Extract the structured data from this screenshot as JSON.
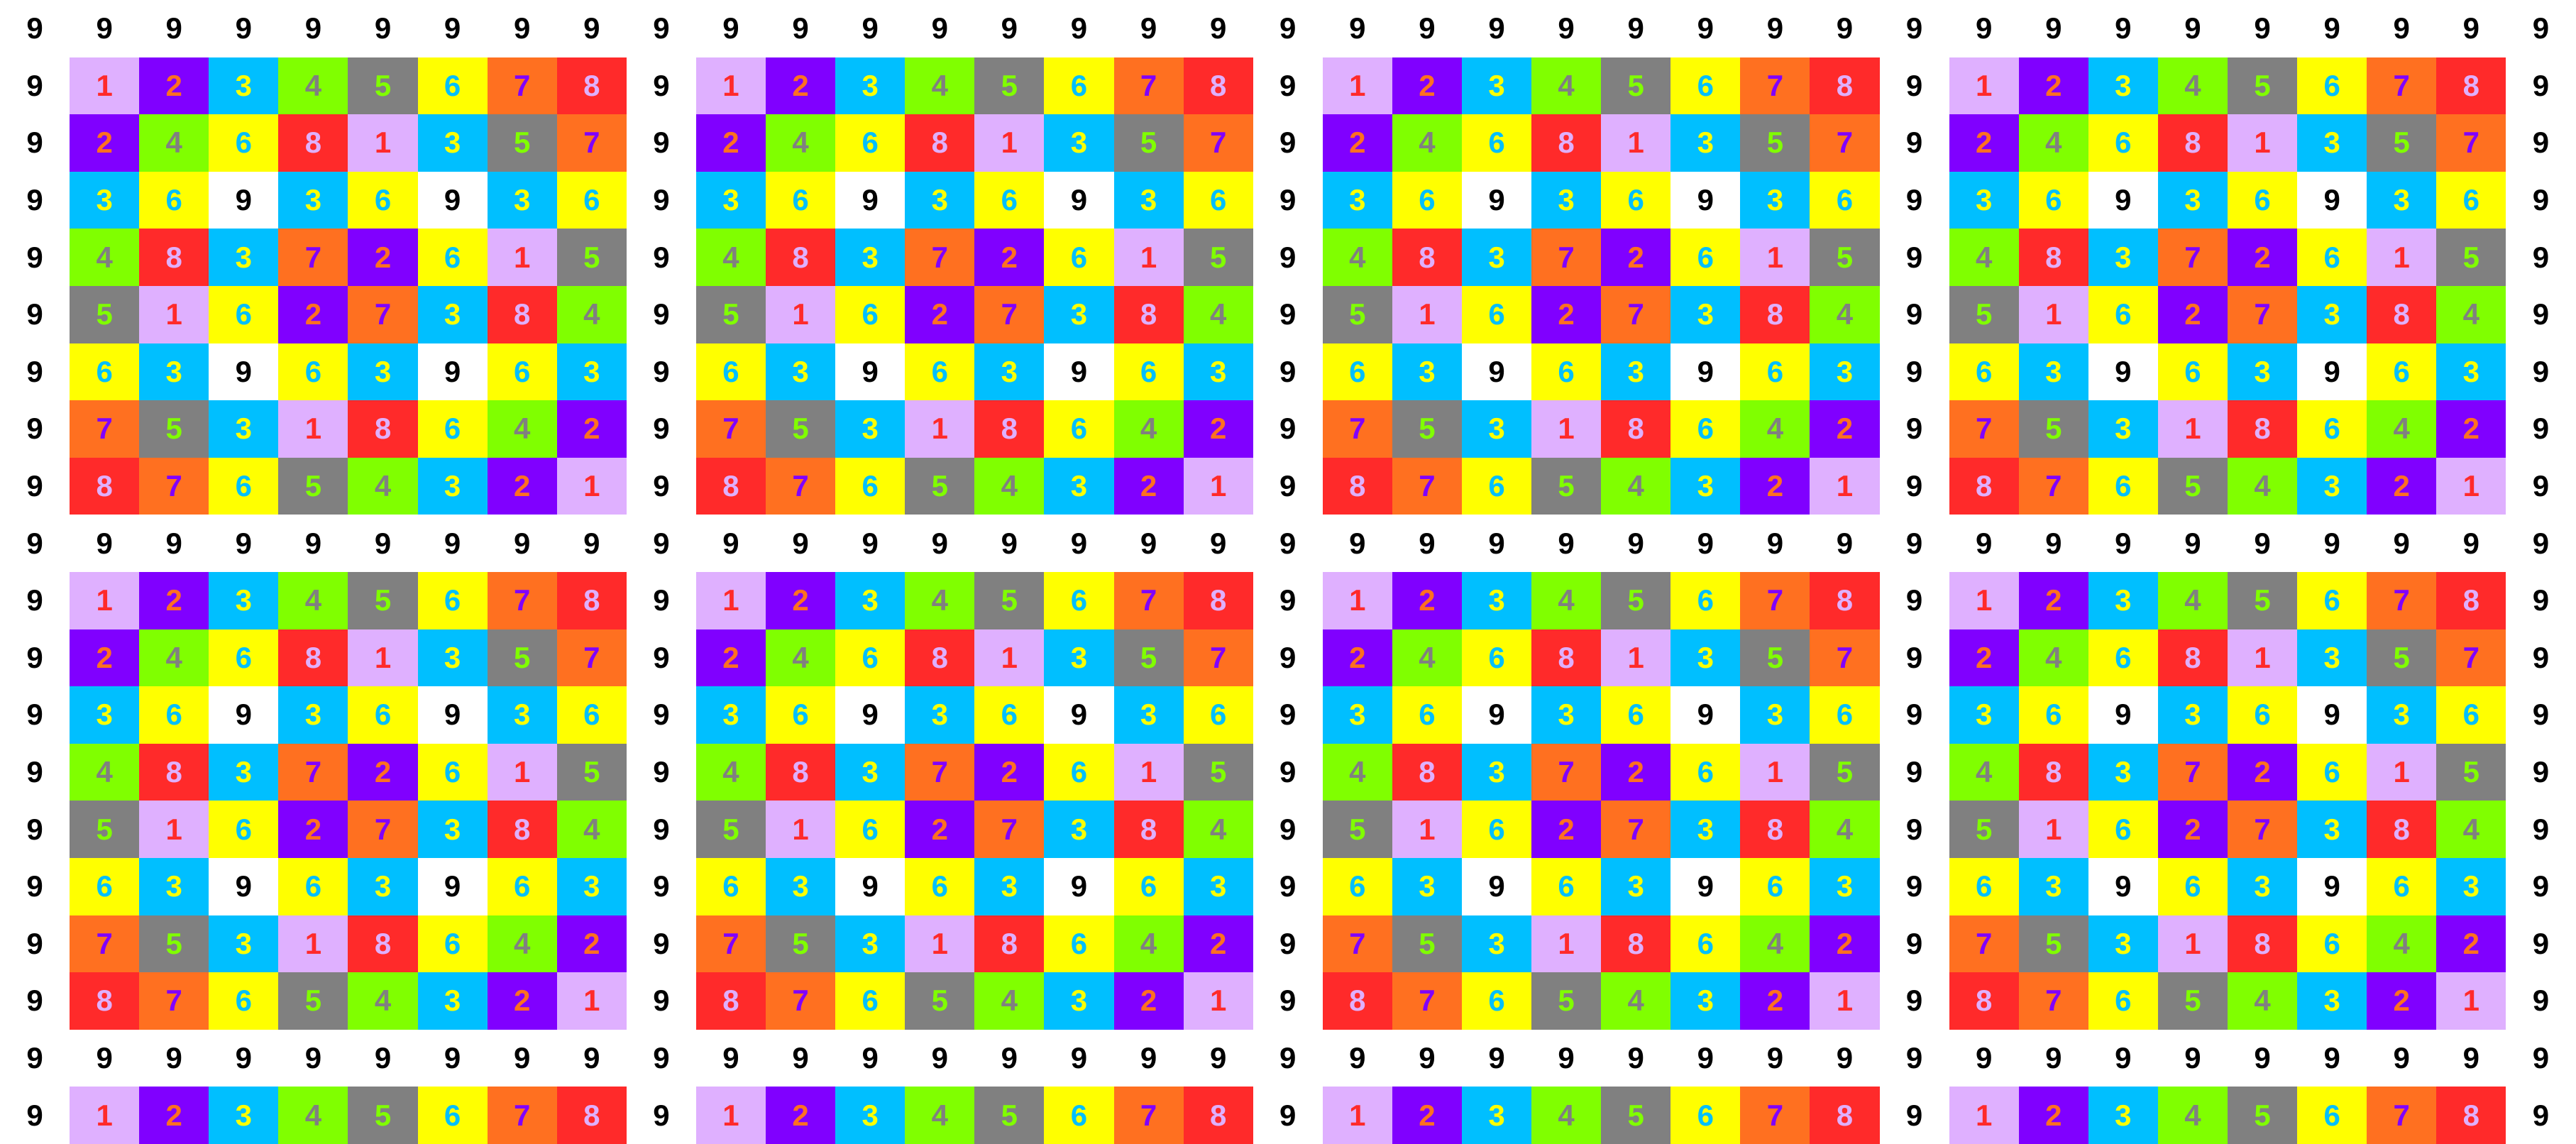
{
  "palette": {
    "1": {
      "bg": "#dfb0ff",
      "fg": "#ff2a2a"
    },
    "2": {
      "bg": "#8000ff",
      "fg": "#ff7020"
    },
    "3": {
      "bg": "#00bfff",
      "fg": "#ffff00"
    },
    "4": {
      "bg": "#80ff00",
      "fg": "#808080"
    },
    "5": {
      "bg": "#808080",
      "fg": "#80ff00"
    },
    "6": {
      "bg": "#ffff00",
      "fg": "#00bfff"
    },
    "7": {
      "bg": "#ff7020",
      "fg": "#8000ff"
    },
    "8": {
      "bg": "#ff2a2a",
      "fg": "#dfb0ff"
    },
    "9": {
      "bg": "#ffffff",
      "fg": "#000000"
    }
  },
  "grid": {
    "rows": [
      [
        9,
        9,
        9,
        9,
        9,
        9,
        9,
        9,
        9,
        9,
        9,
        9,
        9,
        9,
        9,
        9,
        9,
        9,
        9,
        9,
        9,
        9,
        9,
        9,
        9,
        9,
        9,
        9,
        9,
        9,
        9,
        9,
        9,
        9,
        9,
        9,
        9
      ],
      [
        9,
        1,
        2,
        3,
        4,
        5,
        6,
        7,
        8,
        9,
        1,
        2,
        3,
        4,
        5,
        6,
        7,
        8,
        9,
        1,
        2,
        3,
        4,
        5,
        6,
        7,
        8,
        9,
        1,
        2,
        3,
        4,
        5,
        6,
        7,
        8,
        9
      ],
      [
        9,
        2,
        4,
        6,
        8,
        1,
        3,
        5,
        7,
        9,
        2,
        4,
        6,
        8,
        1,
        3,
        5,
        7,
        9,
        2,
        4,
        6,
        8,
        1,
        3,
        5,
        7,
        9,
        2,
        4,
        6,
        8,
        1,
        3,
        5,
        7,
        9
      ],
      [
        9,
        3,
        6,
        9,
        3,
        6,
        9,
        3,
        6,
        9,
        3,
        6,
        9,
        3,
        6,
        9,
        3,
        6,
        9,
        3,
        6,
        9,
        3,
        6,
        9,
        3,
        6,
        9,
        3,
        6,
        9,
        3,
        6,
        9,
        3,
        6,
        9
      ],
      [
        9,
        4,
        8,
        3,
        7,
        2,
        6,
        1,
        5,
        9,
        4,
        8,
        3,
        7,
        2,
        6,
        1,
        5,
        9,
        4,
        8,
        3,
        7,
        2,
        6,
        1,
        5,
        9,
        4,
        8,
        3,
        7,
        2,
        6,
        1,
        5,
        9
      ],
      [
        9,
        5,
        1,
        6,
        2,
        7,
        3,
        8,
        4,
        9,
        5,
        1,
        6,
        2,
        7,
        3,
        8,
        4,
        9,
        5,
        1,
        6,
        2,
        7,
        3,
        8,
        4,
        9,
        5,
        1,
        6,
        2,
        7,
        3,
        8,
        4,
        9
      ],
      [
        9,
        6,
        3,
        9,
        6,
        3,
        9,
        6,
        3,
        9,
        6,
        3,
        9,
        6,
        3,
        9,
        6,
        3,
        9,
        6,
        3,
        9,
        6,
        3,
        9,
        6,
        3,
        9,
        6,
        3,
        9,
        6,
        3,
        9,
        6,
        3,
        9
      ],
      [
        9,
        7,
        5,
        3,
        1,
        8,
        6,
        4,
        2,
        9,
        7,
        5,
        3,
        1,
        8,
        6,
        4,
        2,
        9,
        7,
        5,
        3,
        1,
        8,
        6,
        4,
        2,
        9,
        7,
        5,
        3,
        1,
        8,
        6,
        4,
        2,
        9
      ],
      [
        9,
        8,
        7,
        6,
        5,
        4,
        3,
        2,
        1,
        9,
        8,
        7,
        6,
        5,
        4,
        3,
        2,
        1,
        9,
        8,
        7,
        6,
        5,
        4,
        3,
        2,
        1,
        9,
        8,
        7,
        6,
        5,
        4,
        3,
        2,
        1,
        9
      ],
      [
        9,
        9,
        9,
        9,
        9,
        9,
        9,
        9,
        9,
        9,
        9,
        9,
        9,
        9,
        9,
        9,
        9,
        9,
        9,
        9,
        9,
        9,
        9,
        9,
        9,
        9,
        9,
        9,
        9,
        9,
        9,
        9,
        9,
        9,
        9,
        9,
        9
      ],
      [
        9,
        1,
        2,
        3,
        4,
        5,
        6,
        7,
        8,
        9,
        1,
        2,
        3,
        4,
        5,
        6,
        7,
        8,
        9,
        1,
        2,
        3,
        4,
        5,
        6,
        7,
        8,
        9,
        1,
        2,
        3,
        4,
        5,
        6,
        7,
        8,
        9
      ],
      [
        9,
        2,
        4,
        6,
        8,
        1,
        3,
        5,
        7,
        9,
        2,
        4,
        6,
        8,
        1,
        3,
        5,
        7,
        9,
        2,
        4,
        6,
        8,
        1,
        3,
        5,
        7,
        9,
        2,
        4,
        6,
        8,
        1,
        3,
        5,
        7,
        9
      ],
      [
        9,
        3,
        6,
        9,
        3,
        6,
        9,
        3,
        6,
        9,
        3,
        6,
        9,
        3,
        6,
        9,
        3,
        6,
        9,
        3,
        6,
        9,
        3,
        6,
        9,
        3,
        6,
        9,
        3,
        6,
        9,
        3,
        6,
        9,
        3,
        6,
        9
      ],
      [
        9,
        4,
        8,
        3,
        7,
        2,
        6,
        1,
        5,
        9,
        4,
        8,
        3,
        7,
        2,
        6,
        1,
        5,
        9,
        4,
        8,
        3,
        7,
        2,
        6,
        1,
        5,
        9,
        4,
        8,
        3,
        7,
        2,
        6,
        1,
        5,
        9
      ],
      [
        9,
        5,
        1,
        6,
        2,
        7,
        3,
        8,
        4,
        9,
        5,
        1,
        6,
        2,
        7,
        3,
        8,
        4,
        9,
        5,
        1,
        6,
        2,
        7,
        3,
        8,
        4,
        9,
        5,
        1,
        6,
        2,
        7,
        3,
        8,
        4,
        9
      ],
      [
        9,
        6,
        3,
        9,
        6,
        3,
        9,
        6,
        3,
        9,
        6,
        3,
        9,
        6,
        3,
        9,
        6,
        3,
        9,
        6,
        3,
        9,
        6,
        3,
        9,
        6,
        3,
        9,
        6,
        3,
        9,
        6,
        3,
        9,
        6,
        3,
        9
      ],
      [
        9,
        7,
        5,
        3,
        1,
        8,
        6,
        4,
        2,
        9,
        7,
        5,
        3,
        1,
        8,
        6,
        4,
        2,
        9,
        7,
        5,
        3,
        1,
        8,
        6,
        4,
        2,
        9,
        7,
        5,
        3,
        1,
        8,
        6,
        4,
        2,
        9
      ],
      [
        9,
        8,
        7,
        6,
        5,
        4,
        3,
        2,
        1,
        9,
        8,
        7,
        6,
        5,
        4,
        3,
        2,
        1,
        9,
        8,
        7,
        6,
        5,
        4,
        3,
        2,
        1,
        9,
        8,
        7,
        6,
        5,
        4,
        3,
        2,
        1,
        9
      ],
      [
        9,
        9,
        9,
        9,
        9,
        9,
        9,
        9,
        9,
        9,
        9,
        9,
        9,
        9,
        9,
        9,
        9,
        9,
        9,
        9,
        9,
        9,
        9,
        9,
        9,
        9,
        9,
        9,
        9,
        9,
        9,
        9,
        9,
        9,
        9,
        9,
        9
      ],
      [
        9,
        1,
        2,
        3,
        4,
        5,
        6,
        7,
        8,
        9,
        1,
        2,
        3,
        4,
        5,
        6,
        7,
        8,
        9,
        1,
        2,
        3,
        4,
        5,
        6,
        7,
        8,
        9,
        1,
        2,
        3,
        4,
        5,
        6,
        7,
        8,
        9
      ]
    ]
  }
}
